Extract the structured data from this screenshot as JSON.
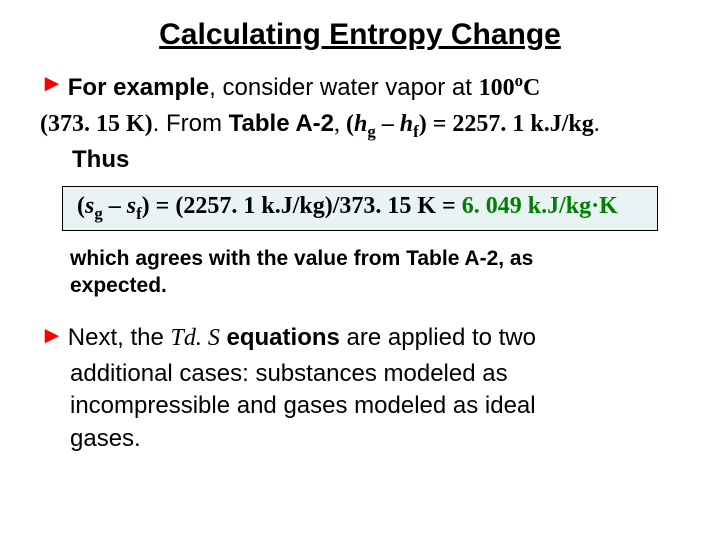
{
  "title": "Calculating Entropy Change",
  "b1": {
    "lead": "For example",
    "mid": ", consider water vapor at ",
    "temp_val": "100",
    "temp_sup": "o",
    "temp_unit": "C"
  },
  "line2": {
    "tempK": "(373. 15 K)",
    "from": ". From ",
    "table": "Table A-2",
    "comma": ", ",
    "hdiff_open": "(",
    "h": "h",
    "g": "g",
    "minus": " – ",
    "f": "f",
    "close": ")",
    "eq": " = 2257. 1 k.J/kg",
    "dot": "."
  },
  "thus": "Thus",
  "eq": {
    "s": "s",
    "g": "g",
    "f": "f",
    "open": "(",
    "close": ") = (",
    "val": "2257. 1 k.J/kg)/373. 15 K = ",
    "result": "6. 049 k.J/kg·K"
  },
  "note": {
    "l1": "which agrees with the value from Table A-2, as",
    "l2": "expected."
  },
  "b2": {
    "lead": "Next, the ",
    "tds": "Td. S",
    "mid": " equations",
    "rest1": " are applied to two",
    "rest2": "additional cases:  substances modeled as",
    "rest3": "incompressible and gases modeled as ideal",
    "rest4": "gases."
  },
  "colors": {
    "arrow": "#ff0000",
    "green": "#008000",
    "eq_bg": "#eaf3f3"
  }
}
